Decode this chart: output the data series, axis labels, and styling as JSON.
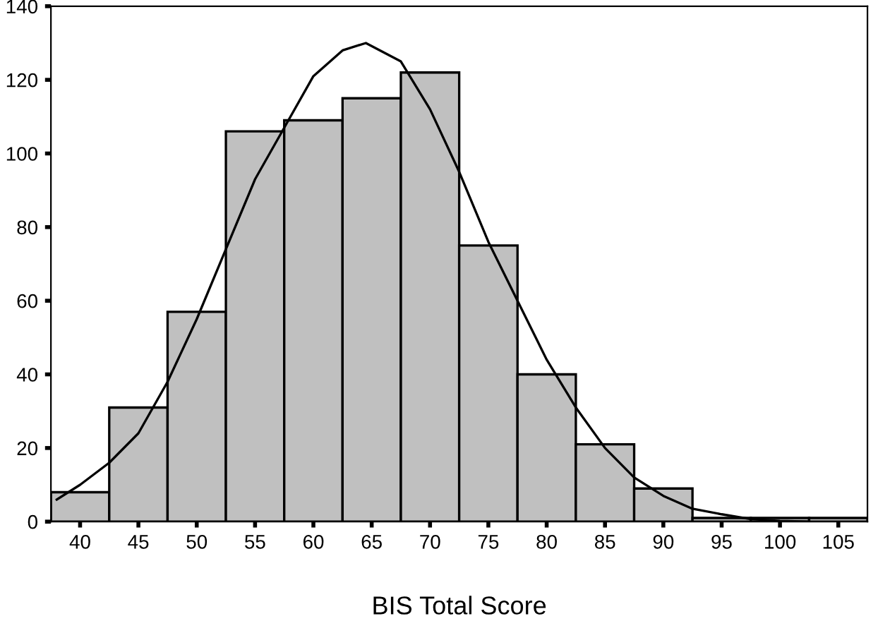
{
  "chart_data": {
    "type": "histogram",
    "xlabel": "BIS Total Score",
    "bins": [
      37.5,
      42.5,
      47.5,
      52.5,
      57.5,
      62.5,
      67.5,
      72.5,
      77.5,
      82.5,
      87.5,
      92.5,
      97.5,
      102.5,
      107.5
    ],
    "values": [
      8,
      31,
      57,
      106,
      109,
      115,
      122,
      75,
      40,
      21,
      9,
      1,
      1,
      1
    ],
    "color": "#c0c0c0",
    "series": [
      {
        "type": "line",
        "color": "#000000",
        "x": [
          38,
          40,
          42.5,
          45,
          47.5,
          50,
          52.5,
          55,
          57.5,
          60,
          62.5,
          64.5,
          67.5,
          70,
          72.5,
          75,
          77.5,
          80,
          82.5,
          85,
          87.5,
          90,
          92.5,
          95,
          97.5,
          100,
          102.5
        ],
        "values": [
          6,
          10,
          16,
          24,
          38,
          55,
          74,
          93,
          107,
          121,
          128,
          130,
          125,
          112,
          95,
          76,
          60,
          44,
          31,
          20,
          12,
          7,
          3.5,
          2,
          0.7,
          0.2,
          0
        ]
      }
    ],
    "xlim": [
      37.5,
      107.5
    ],
    "ylim": [
      0,
      140
    ],
    "xticks": [
      40,
      45,
      50,
      55,
      60,
      65,
      70,
      75,
      80,
      85,
      90,
      95,
      100,
      105
    ],
    "yticks": [
      0,
      20,
      40,
      60,
      80,
      100,
      120,
      140
    ],
    "grid": false,
    "legend": false
  }
}
